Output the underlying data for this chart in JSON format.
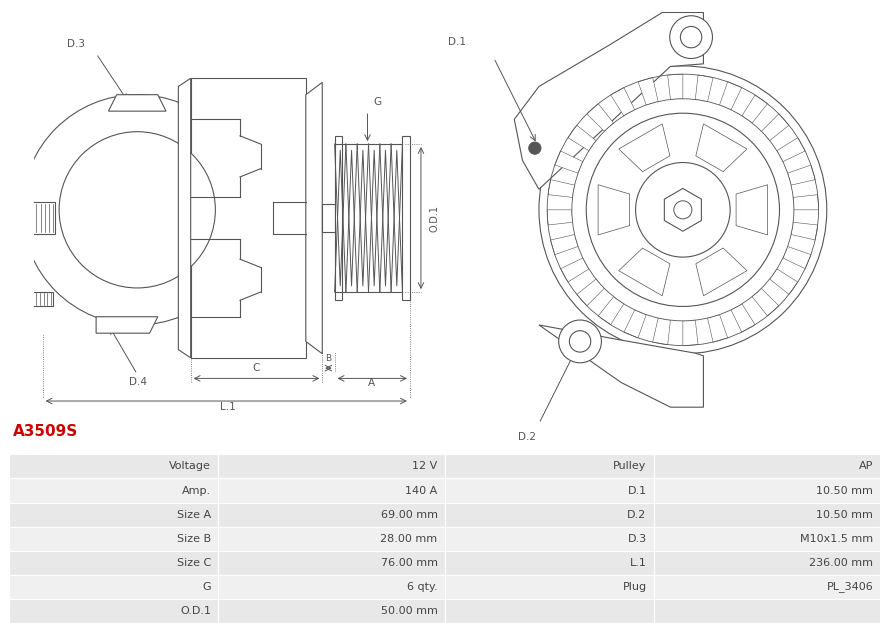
{
  "title": "A3509S",
  "title_color": "#cc0000",
  "background_color": "#ffffff",
  "table_data": {
    "left_labels": [
      "Voltage",
      "Amp.",
      "Size A",
      "Size B",
      "Size C",
      "G",
      "O.D.1"
    ],
    "left_values": [
      "12 V",
      "140 A",
      "69.00 mm",
      "28.00 mm",
      "76.00 mm",
      "6 qty.",
      "50.00 mm"
    ],
    "right_labels": [
      "Pulley",
      "D.1",
      "D.2",
      "D.3",
      "L.1",
      "Plug",
      ""
    ],
    "right_values": [
      "AP",
      "10.50 mm",
      "10.50 mm",
      "M10x1.5 mm",
      "236.00 mm",
      "PL_3406",
      ""
    ]
  },
  "row_colors": [
    "#e8e8e8",
    "#f0f0f0"
  ],
  "line_color": "#555555",
  "dim_color": "#555555",
  "font_size_table": 8,
  "font_size_title": 11
}
